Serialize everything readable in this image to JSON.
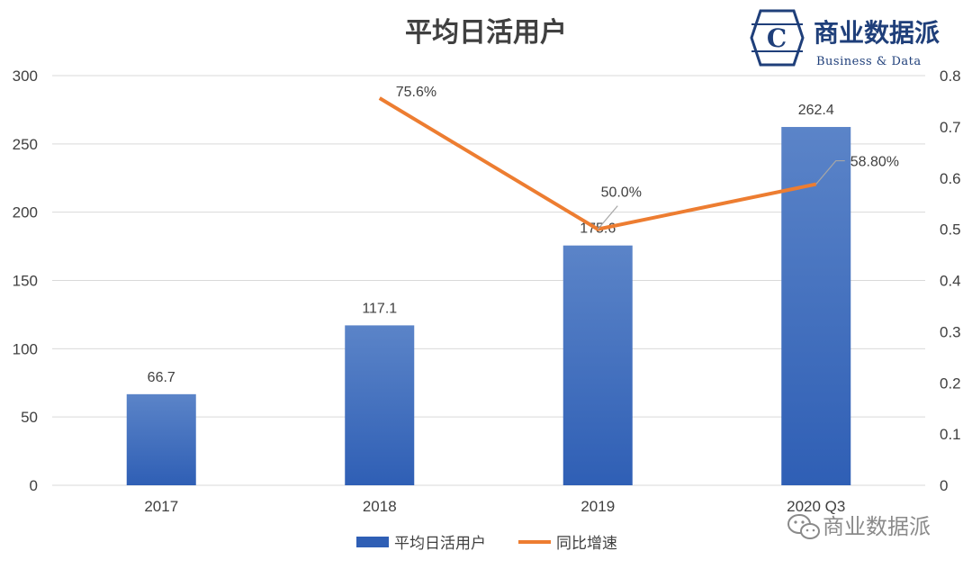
{
  "chart_data": {
    "type": "bar",
    "title": "平均日活用户",
    "categories": [
      "2017",
      "2018",
      "2019",
      "2020 Q3"
    ],
    "series": [
      {
        "name": "平均日活用户",
        "type": "bar",
        "axis": "left",
        "values": [
          66.7,
          117.1,
          175.6,
          262.4
        ],
        "labels": [
          "66.7",
          "117.1",
          "175.6",
          "262.4"
        ]
      },
      {
        "name": "同比增速",
        "type": "line",
        "axis": "right",
        "values": [
          null,
          0.756,
          0.5,
          0.588
        ],
        "labels": [
          "",
          "75.6%",
          "50.0%",
          "58.80%"
        ]
      }
    ],
    "y_left": {
      "min": 0,
      "max": 300,
      "ticks": [
        "0",
        "50",
        "100",
        "150",
        "200",
        "250",
        "300"
      ]
    },
    "y_right": {
      "min": 0,
      "max": 0.8,
      "ticks": [
        "0",
        "0.1",
        "0.2",
        "0.3",
        "0.4",
        "0.5",
        "0.6",
        "0.7",
        "0.8"
      ]
    },
    "grid": true,
    "legend_position": "bottom",
    "colors": {
      "bar_top": "#5b84c8",
      "bar_bottom": "#2f5fb5",
      "line": "#ed7d31",
      "grid": "#d9d9d9",
      "leader": "#a6a6a6"
    }
  },
  "logo": {
    "text": "商业数据派",
    "subtitle": "Business & Data",
    "letter": "C"
  },
  "watermark": {
    "text": "商业数据派"
  }
}
